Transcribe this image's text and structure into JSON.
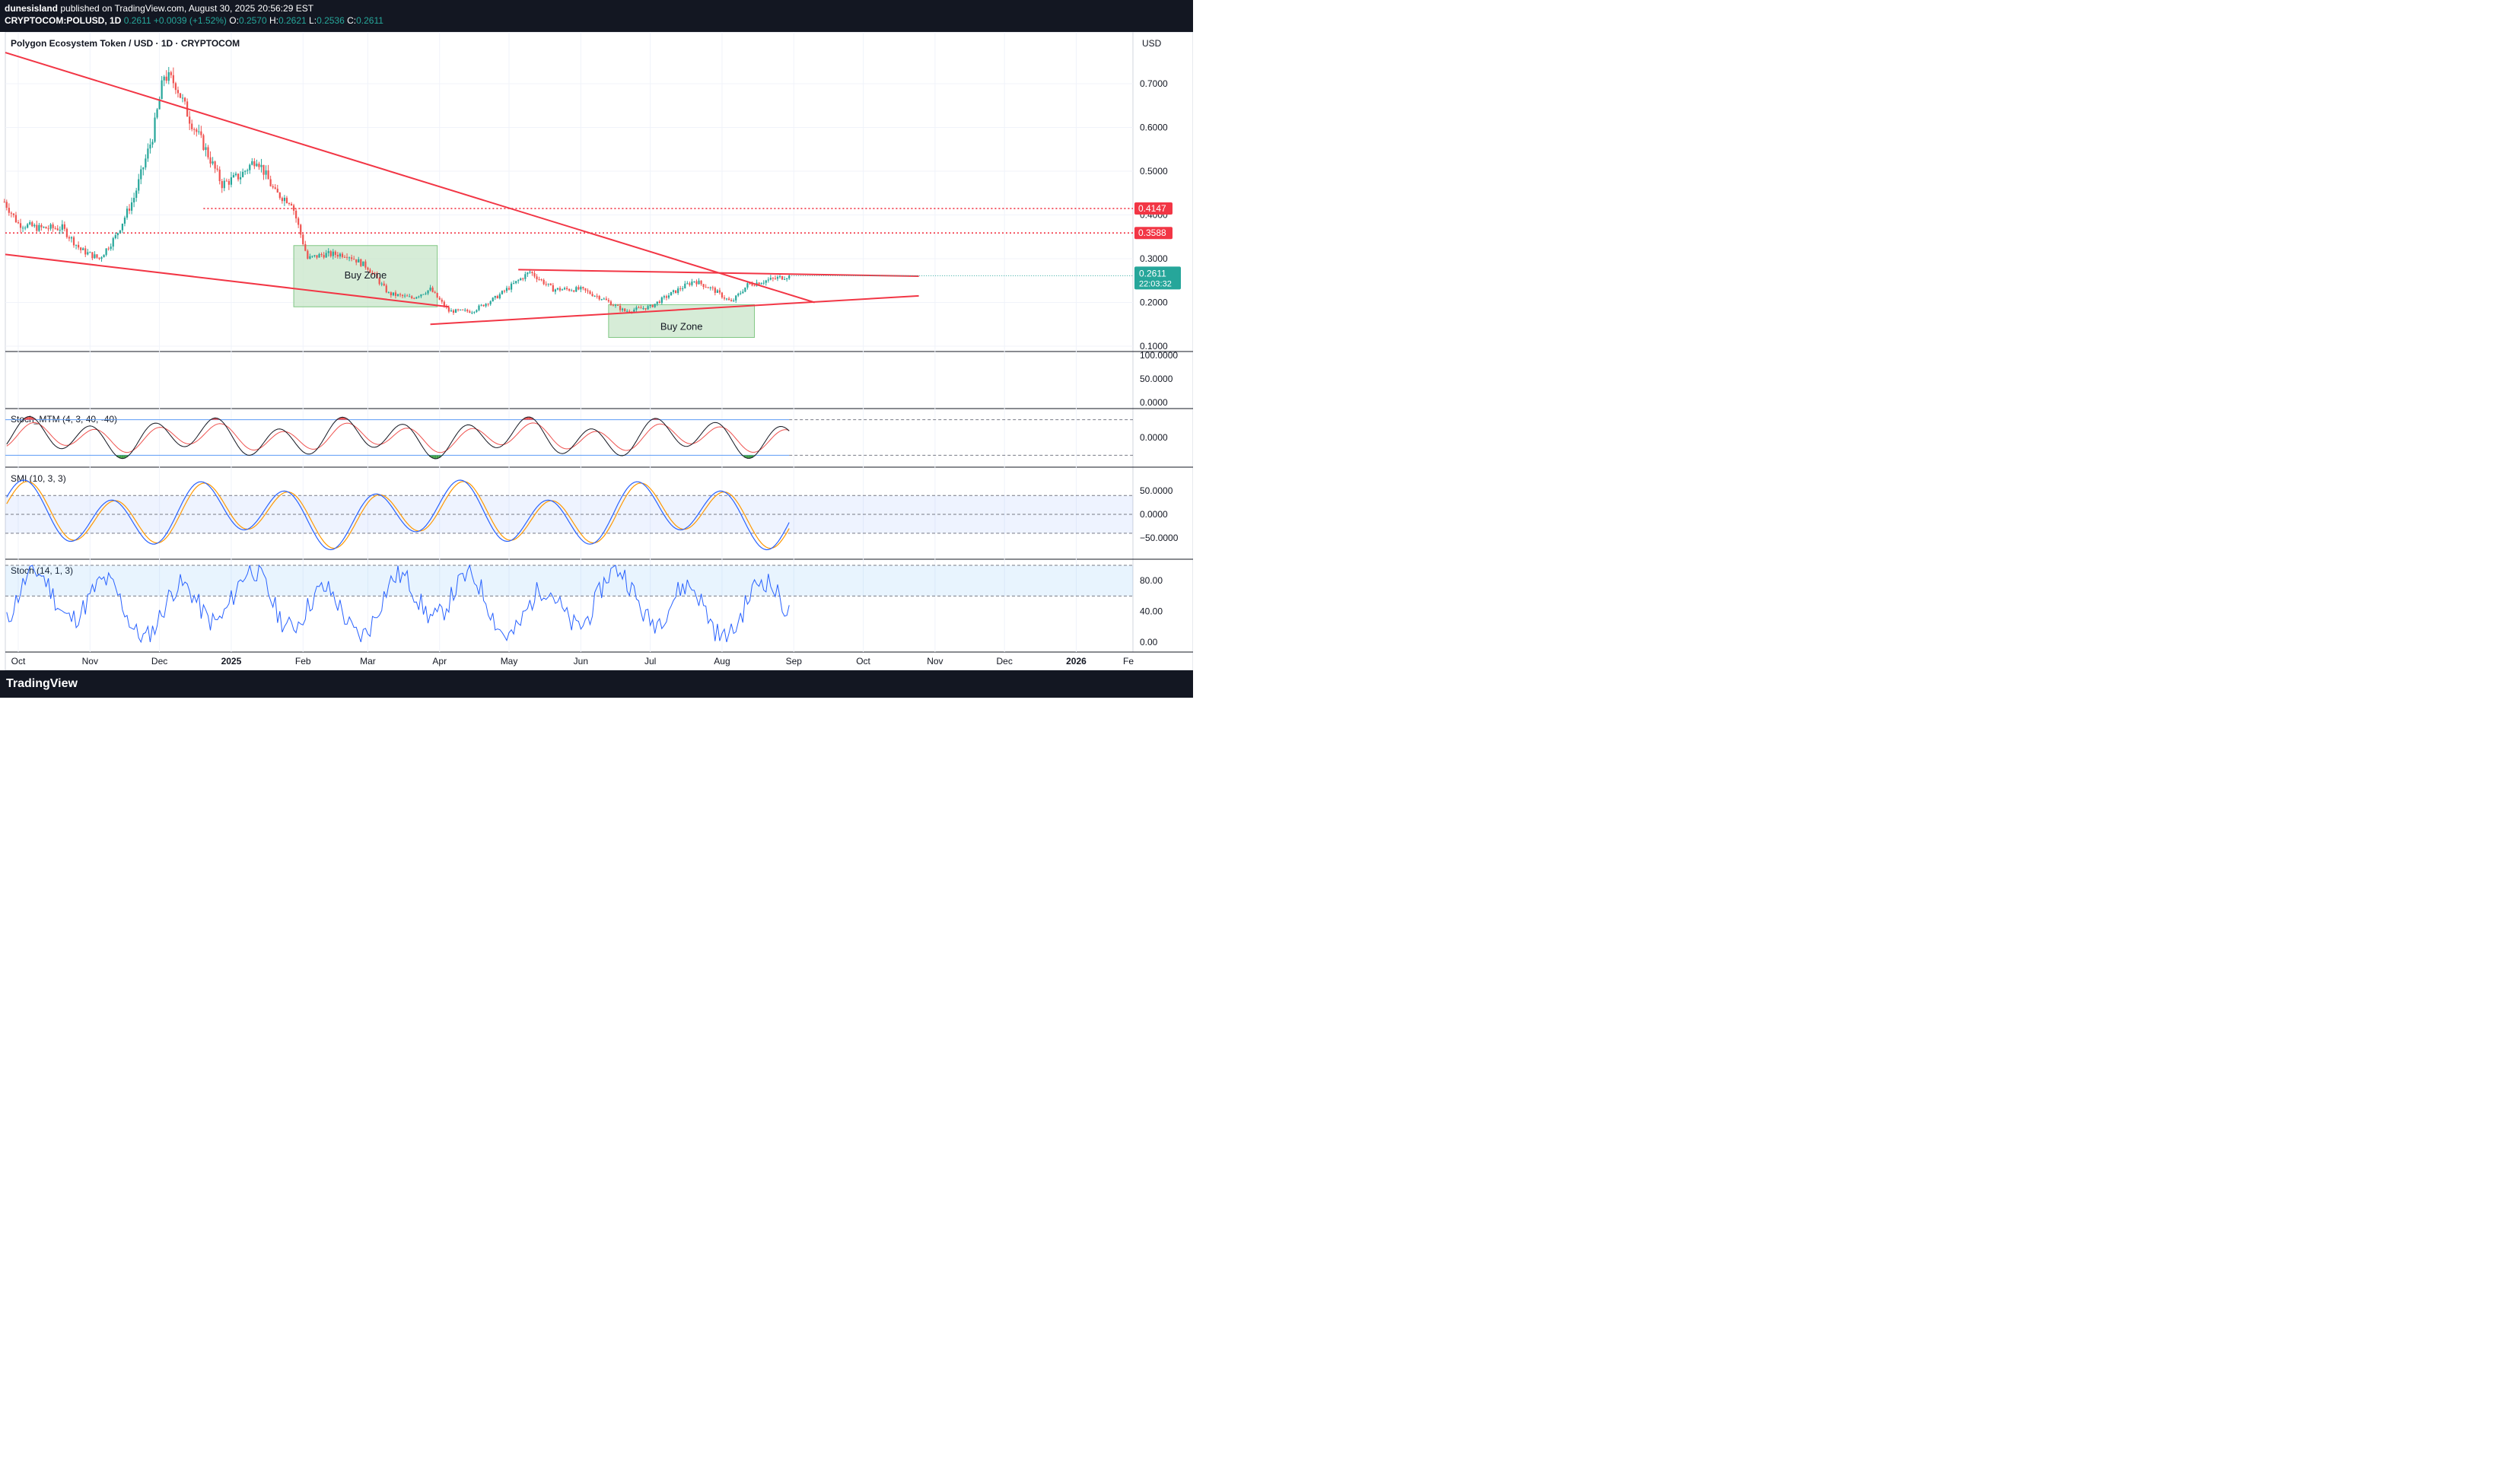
{
  "header": {
    "author": "dunesisland",
    "published_text": "published on TradingView.com, August 30, 2025 20:56:29 EST",
    "symbol": "CRYPTOCOM:POLUSD, 1D",
    "price": "0.2611",
    "change": "+0.0039 (+1.52%)",
    "o_label": "O:",
    "o": "0.2570",
    "h_label": "H:",
    "h": "0.2621",
    "l_label": "L:",
    "l": "0.2536",
    "c_label": "C:",
    "c": "0.2611"
  },
  "footer": {
    "brand": "TradingView",
    "logo_icon": "tradingview-logo-icon"
  },
  "colors": {
    "up": "#26a69a",
    "down": "#ef5350",
    "trend": "#f23645",
    "zone": "#c8e6c9",
    "blue": "#2962ff",
    "orange": "#ff9800"
  },
  "chart_data": [
    {
      "type": "candlestick",
      "title": "Polygon Ecosystem Token / USD · 1D · CRYPTOCOM",
      "currency": "USD",
      "ylim": [
        0.1,
        0.78
      ],
      "y_ticks": [
        "0.7000",
        "0.6000",
        "0.5000",
        "0.4000",
        "0.3000",
        "0.2000",
        "0.1000"
      ],
      "x_ticks": [
        "Oct",
        "Nov",
        "Dec",
        "2025",
        "Feb",
        "Mar",
        "Apr",
        "May",
        "Jun",
        "Jul",
        "Aug",
        "Sep",
        "Oct",
        "Nov",
        "Dec",
        "2026",
        "Fe"
      ],
      "price_path": {
        "x": [
          "2024-09-25",
          "2024-10-01",
          "2024-10-10",
          "2024-10-20",
          "2024-10-28",
          "2024-11-05",
          "2024-11-12",
          "2024-11-20",
          "2024-11-28",
          "2024-12-03",
          "2024-12-08",
          "2024-12-14",
          "2024-12-20",
          "2024-12-28",
          "2025-01-05",
          "2025-01-12",
          "2025-01-20",
          "2025-01-27",
          "2025-02-03",
          "2025-02-10",
          "2025-02-20",
          "2025-03-01",
          "2025-03-10",
          "2025-03-20",
          "2025-03-28",
          "2025-04-05",
          "2025-04-15",
          "2025-04-25",
          "2025-05-05",
          "2025-05-10",
          "2025-05-20",
          "2025-06-01",
          "2025-06-10",
          "2025-06-20",
          "2025-07-01",
          "2025-07-10",
          "2025-07-20",
          "2025-07-28",
          "2025-08-05",
          "2025-08-12",
          "2025-08-20",
          "2025-08-30"
        ],
        "y": [
          0.43,
          0.38,
          0.37,
          0.37,
          0.32,
          0.3,
          0.35,
          0.44,
          0.58,
          0.72,
          0.7,
          0.62,
          0.56,
          0.47,
          0.49,
          0.53,
          0.45,
          0.43,
          0.3,
          0.31,
          0.31,
          0.28,
          0.22,
          0.21,
          0.23,
          0.18,
          0.18,
          0.21,
          0.25,
          0.27,
          0.23,
          0.23,
          0.21,
          0.18,
          0.19,
          0.22,
          0.25,
          0.23,
          0.2,
          0.24,
          0.25,
          0.2611
        ]
      },
      "price_labels": [
        {
          "label": "0.4147",
          "value": 0.4147
        },
        {
          "label": "0.3588",
          "value": 0.3588
        }
      ],
      "current_price": {
        "label": "0.2611",
        "countdown": "22:03:32",
        "value": 0.2611
      },
      "trendlines": [
        {
          "from": [
            "2024-09-20",
            0.78
          ],
          "to": [
            "2025-09-10",
            0.2
          ]
        },
        {
          "from": [
            "2024-09-25",
            0.31
          ],
          "to": [
            "2025-04-05",
            0.19
          ]
        },
        {
          "from": [
            "2025-03-28",
            0.15
          ],
          "to": [
            "2025-10-25",
            0.215
          ]
        },
        {
          "from": [
            "2025-05-05",
            0.275
          ],
          "to": [
            "2025-10-25",
            0.26
          ]
        }
      ],
      "zones": [
        {
          "label": "Buy Zone",
          "from": "2025-01-28",
          "to": "2025-03-31",
          "top": 0.33,
          "bottom": 0.19
        },
        {
          "label": "Buy Zone",
          "from": "2025-06-13",
          "to": "2025-08-15",
          "top": 0.195,
          "bottom": 0.12
        }
      ]
    },
    {
      "type": "line",
      "title": "",
      "ylim": [
        0,
        100
      ],
      "y_ticks": [
        "100.0000",
        "50.0000",
        "0.0000"
      ],
      "series": []
    },
    {
      "type": "line",
      "title": "Stoch_MTM (4, 3, 40, -40)",
      "ylim": [
        -60,
        60
      ],
      "y_ticks": [
        "0.0000"
      ],
      "levels": [
        40,
        -40
      ]
    },
    {
      "type": "line",
      "title": "SMI (10, 3, 3)",
      "ylim": [
        -90,
        95
      ],
      "y_ticks": [
        "50.0000",
        "0.0000",
        "−50.0000"
      ],
      "levels": [
        40,
        0,
        -40
      ]
    },
    {
      "type": "line",
      "title": "Stoch (14, 1, 3)",
      "ylim": [
        -10,
        105
      ],
      "y_ticks": [
        "80.00",
        "40.00",
        "0.00"
      ],
      "levels": [
        100,
        60
      ]
    }
  ]
}
